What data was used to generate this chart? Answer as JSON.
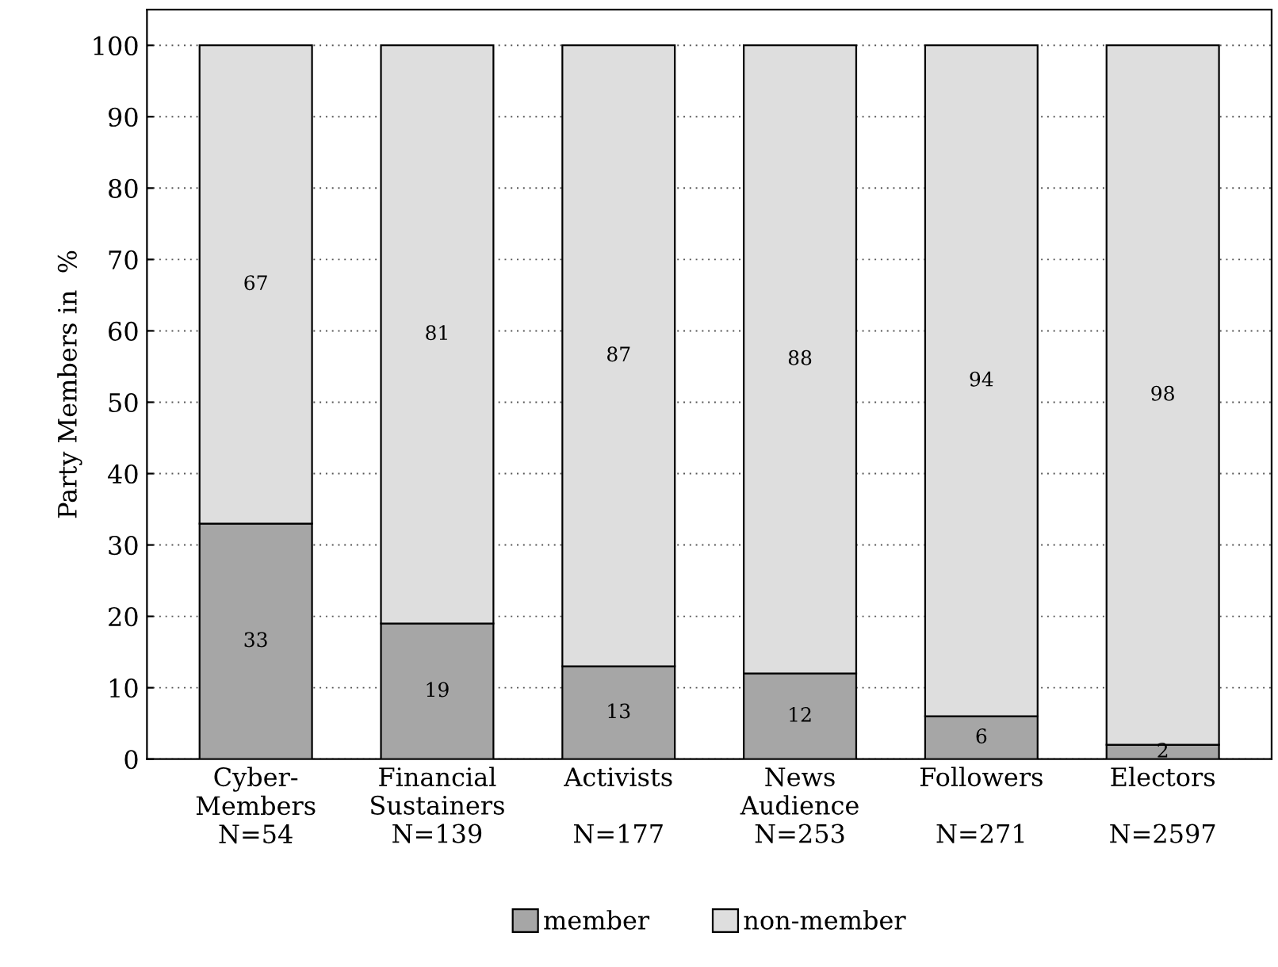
{
  "chart_data": {
    "type": "bar",
    "stacked": true,
    "ylabel": "Party Members in  %",
    "categories": [
      "Cyber-\nMembers\nN=54",
      "Financial\nSustainers\nN=139",
      "Activists\n\nN=177",
      "News\nAudience\nN=253",
      "Followers\n\nN=271",
      "Electors\n\nN=2597"
    ],
    "series": [
      {
        "name": "member",
        "color": "#a6a6a6",
        "values": [
          33,
          19,
          13,
          12,
          6,
          2
        ]
      },
      {
        "name": "non-member",
        "color": "#dedede",
        "values": [
          67,
          81,
          87,
          88,
          94,
          98
        ]
      }
    ],
    "ylim": [
      0,
      105
    ],
    "yticks": [
      0,
      10,
      20,
      30,
      40,
      50,
      60,
      70,
      80,
      90,
      100
    ],
    "grid": "y",
    "legend": "bottom",
    "data_labels": true
  }
}
